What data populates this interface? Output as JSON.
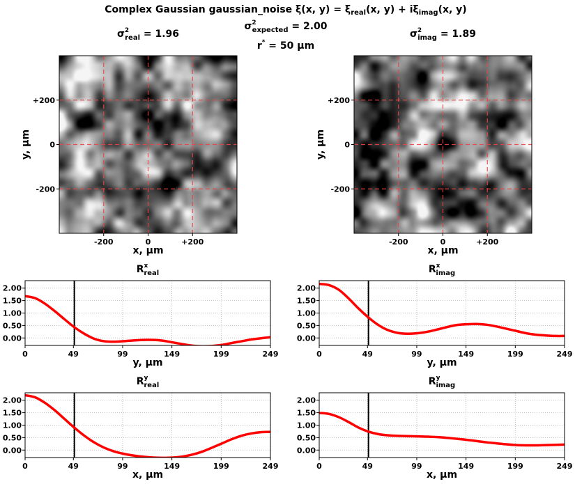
{
  "header": {
    "title_prefix": "Complex Gaussian gaussian_noise ",
    "title_formula": "ξ(x, y) = ξ",
    "title_sub_real": "real",
    "title_mid": "(x, y) + iξ",
    "title_sub_imag": "imag",
    "title_end": "(x, y)",
    "expected_sigma": "σ",
    "expected_sup": "2",
    "expected_sub": "expected",
    "expected_value": " = 2.00",
    "rstar": "r",
    "rstar_sup": "*",
    "rstar_value": " = 50 μm"
  },
  "colors": {
    "curve": "#ff0000",
    "grid": "#b0b0b0",
    "crosshair": "#e84545",
    "marker": "#000000"
  },
  "chart_data": [
    {
      "type": "heatmap",
      "title": {
        "sigma": "σ",
        "sup": "2",
        "sub": "real",
        "value": " = 1.96"
      },
      "xlabel": "x, μm",
      "ylabel": "y, μm",
      "xlim": [
        -400,
        400
      ],
      "ylim": [
        -400,
        400
      ],
      "xticks": [
        {
          "v": -200,
          "label": "-200"
        },
        {
          "v": 0,
          "label": "0"
        },
        {
          "v": 200,
          "label": "+200"
        }
      ],
      "yticks": [
        {
          "v": 200,
          "label": "+200"
        },
        {
          "v": 0,
          "label": "0"
        },
        {
          "v": -200,
          "label": "-200"
        }
      ],
      "colormap": "gray",
      "crosshairs": [
        -200,
        0,
        200
      ],
      "seed": 7
    },
    {
      "type": "heatmap",
      "title": {
        "sigma": "σ",
        "sup": "2",
        "sub": "imag",
        "value": " = 1.89"
      },
      "xlabel": "x, μm",
      "ylabel": "y, μm",
      "xlim": [
        -400,
        400
      ],
      "ylim": [
        -400,
        400
      ],
      "xticks": [
        {
          "v": -200,
          "label": "-200"
        },
        {
          "v": 0,
          "label": "0"
        },
        {
          "v": 200,
          "label": "+200"
        }
      ],
      "yticks": [
        {
          "v": 200,
          "label": "+200"
        },
        {
          "v": 0,
          "label": "0"
        },
        {
          "v": -200,
          "label": "-200"
        }
      ],
      "colormap": "gray",
      "crosshairs": [
        -200,
        0,
        200
      ],
      "seed": 23
    },
    {
      "type": "line",
      "title": {
        "base": "R",
        "sup": "x",
        "sub": "real"
      },
      "xlabel": "y, μm",
      "xlim": [
        0,
        249
      ],
      "ylim": [
        -0.3,
        2.3
      ],
      "xticks": [
        0,
        49,
        99,
        149,
        199,
        249
      ],
      "yticks": [
        "2.00",
        "1.50",
        "1.00",
        "0.50",
        "0.00"
      ],
      "vline": 50,
      "series": [
        {
          "x": [
            0,
            10,
            20,
            30,
            40,
            50,
            60,
            70,
            80,
            90,
            100,
            110,
            120,
            130,
            140,
            150,
            160,
            170,
            180,
            190,
            200,
            210,
            220,
            230,
            240,
            249
          ],
          "y": [
            1.68,
            1.6,
            1.38,
            1.08,
            0.75,
            0.43,
            0.17,
            -0.03,
            -0.13,
            -0.15,
            -0.13,
            -0.1,
            -0.08,
            -0.08,
            -0.11,
            -0.18,
            -0.25,
            -0.31,
            -0.33,
            -0.32,
            -0.28,
            -0.2,
            -0.13,
            -0.06,
            -0.01,
            0.03
          ]
        }
      ]
    },
    {
      "type": "line",
      "title": {
        "base": "R",
        "sup": "x",
        "sub": "imag"
      },
      "xlabel": "y, μm",
      "xlim": [
        0,
        249
      ],
      "ylim": [
        -0.3,
        2.3
      ],
      "xticks": [
        0,
        49,
        99,
        149,
        199,
        249
      ],
      "yticks": [
        "2.00",
        "1.50",
        "1.00",
        "0.50",
        "0.00"
      ],
      "vline": 50,
      "series": [
        {
          "x": [
            0,
            10,
            20,
            30,
            40,
            50,
            60,
            70,
            80,
            90,
            100,
            110,
            120,
            130,
            140,
            150,
            160,
            170,
            180,
            190,
            200,
            210,
            220,
            230,
            240,
            249
          ],
          "y": [
            2.17,
            2.12,
            1.93,
            1.58,
            1.18,
            0.82,
            0.52,
            0.31,
            0.2,
            0.17,
            0.19,
            0.25,
            0.34,
            0.44,
            0.52,
            0.55,
            0.56,
            0.53,
            0.46,
            0.37,
            0.28,
            0.19,
            0.13,
            0.1,
            0.08,
            0.08
          ]
        }
      ]
    },
    {
      "type": "line",
      "title": {
        "base": "R",
        "sup": "y",
        "sub": "real"
      },
      "xlabel": "x, μm",
      "xlim": [
        0,
        249
      ],
      "ylim": [
        -0.3,
        2.3
      ],
      "xticks": [
        0,
        49,
        99,
        149,
        199,
        249
      ],
      "yticks": [
        "2.00",
        "1.50",
        "1.00",
        "0.50",
        "0.00"
      ],
      "vline": 50,
      "series": [
        {
          "x": [
            0,
            10,
            20,
            30,
            40,
            50,
            60,
            70,
            80,
            90,
            100,
            110,
            120,
            130,
            140,
            150,
            160,
            170,
            180,
            190,
            200,
            210,
            220,
            230,
            240,
            249
          ],
          "y": [
            2.2,
            2.12,
            1.9,
            1.6,
            1.25,
            0.9,
            0.58,
            0.31,
            0.1,
            -0.05,
            -0.15,
            -0.22,
            -0.27,
            -0.3,
            -0.31,
            -0.3,
            -0.26,
            -0.18,
            -0.06,
            0.1,
            0.27,
            0.44,
            0.58,
            0.67,
            0.72,
            0.73
          ]
        }
      ]
    },
    {
      "type": "line",
      "title": {
        "base": "R",
        "sup": "y",
        "sub": "imag"
      },
      "xlabel": "x, μm",
      "xlim": [
        0,
        249
      ],
      "ylim": [
        -0.3,
        2.3
      ],
      "xticks": [
        0,
        49,
        99,
        149,
        199,
        249
      ],
      "yticks": [
        "2.00",
        "1.50",
        "1.00",
        "0.50",
        "0.00"
      ],
      "vline": 50,
      "series": [
        {
          "x": [
            0,
            10,
            20,
            30,
            40,
            50,
            60,
            70,
            80,
            90,
            100,
            110,
            120,
            130,
            140,
            150,
            160,
            170,
            180,
            190,
            200,
            210,
            220,
            230,
            240,
            249
          ],
          "y": [
            1.49,
            1.45,
            1.32,
            1.12,
            0.9,
            0.74,
            0.64,
            0.59,
            0.57,
            0.56,
            0.55,
            0.54,
            0.52,
            0.49,
            0.45,
            0.41,
            0.36,
            0.31,
            0.27,
            0.23,
            0.2,
            0.19,
            0.19,
            0.2,
            0.21,
            0.22
          ]
        }
      ]
    }
  ]
}
